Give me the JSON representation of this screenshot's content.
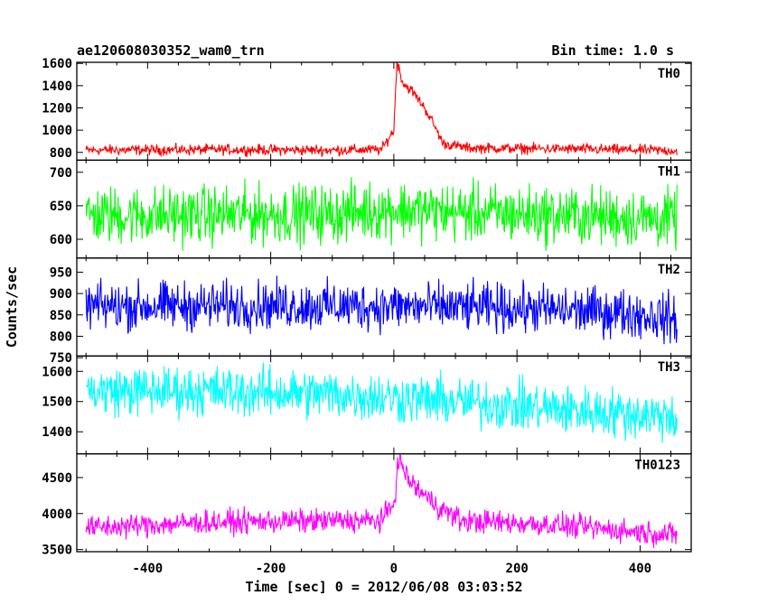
{
  "header": {
    "title": "ae120608030352_wam0_trn",
    "bin_time": "Bin time: 1.0 s"
  },
  "chart_data": {
    "type": "line",
    "title": "ae120608030352_wam0_trn",
    "xlabel": "Time [sec] 0 = 2012/06/08 03:03:52",
    "ylabel": "Counts/sec",
    "xlim": [
      -515,
      483
    ],
    "x_range": [
      -500,
      460
    ],
    "bin_seconds": 1.0,
    "x_ticks": [
      -400,
      -200,
      0,
      200,
      400
    ],
    "grid": false,
    "panels": [
      {
        "name": "TH0",
        "color": "#ff0000",
        "ylim": [
          730,
          1610
        ],
        "y_ticks": [
          800,
          1000,
          1200,
          1400,
          1600
        ],
        "trend": [
          [
            -500,
            820
          ],
          [
            -300,
            825
          ],
          [
            -100,
            820
          ],
          [
            -20,
            825
          ],
          [
            0,
            1000
          ],
          [
            5,
            1620
          ],
          [
            15,
            1420
          ],
          [
            30,
            1350
          ],
          [
            50,
            1200
          ],
          [
            65,
            1050
          ],
          [
            80,
            880
          ],
          [
            120,
            840
          ],
          [
            300,
            830
          ],
          [
            460,
            815
          ]
        ],
        "noise_amp": 55
      },
      {
        "name": "TH1",
        "color": "#00ff00",
        "ylim": [
          572,
          718
        ],
        "y_ticks": [
          600,
          650,
          700
        ],
        "trend": [
          [
            -500,
            635
          ],
          [
            -100,
            638
          ],
          [
            0,
            645
          ],
          [
            100,
            640
          ],
          [
            300,
            635
          ],
          [
            460,
            630
          ]
        ],
        "noise_amp": 50
      },
      {
        "name": "TH2",
        "color": "#0000ff",
        "ylim": [
          754,
          983
        ],
        "y_ticks": [
          750,
          800,
          850,
          900,
          950
        ],
        "trend": [
          [
            -500,
            870
          ],
          [
            -200,
            872
          ],
          [
            0,
            870
          ],
          [
            200,
            865
          ],
          [
            380,
            855
          ],
          [
            460,
            840
          ]
        ],
        "noise_amp": 65
      },
      {
        "name": "TH3",
        "color": "#00ffff",
        "ylim": [
          1327,
          1651
        ],
        "y_ticks": [
          1400,
          1500,
          1600
        ],
        "trend": [
          [
            -500,
            1535
          ],
          [
            -300,
            1535
          ],
          [
            -100,
            1525
          ],
          [
            100,
            1500
          ],
          [
            300,
            1470
          ],
          [
            460,
            1450
          ]
        ],
        "noise_amp": 95
      },
      {
        "name": "TH0123",
        "color": "#ff00ff",
        "ylim": [
          3470,
          4830
        ],
        "y_ticks": [
          3500,
          4000,
          4500
        ],
        "trend": [
          [
            -500,
            3800
          ],
          [
            -300,
            3880
          ],
          [
            -100,
            3900
          ],
          [
            -20,
            3900
          ],
          [
            0,
            4150
          ],
          [
            8,
            4750
          ],
          [
            25,
            4450
          ],
          [
            50,
            4250
          ],
          [
            80,
            4050
          ],
          [
            110,
            3900
          ],
          [
            250,
            3850
          ],
          [
            460,
            3700
          ]
        ],
        "noise_amp": 190
      }
    ]
  }
}
